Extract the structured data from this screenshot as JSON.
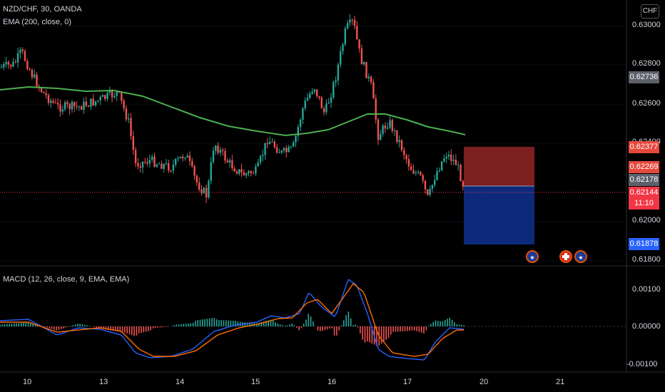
{
  "header": {
    "symbol_line": "NZD/CHF, 30, OANDA",
    "ema_line": "EMA (200, close, 0)",
    "macd_line": "MACD (12, 26, close, 9, EMA, EMA)",
    "currency_button": "CHF"
  },
  "price_axis": {
    "ticks": [
      "0.63000",
      "0.62800",
      "0.62600",
      "0.62400",
      "0.62000",
      "0.61800"
    ],
    "badges": [
      {
        "label": "0.62736",
        "color": "#5d606b"
      },
      {
        "label": "0.62377",
        "color": "#e5483c"
      },
      {
        "label": "0.62269",
        "color": "#e5483c"
      },
      {
        "label": "0.62178",
        "color": "#5d606b"
      },
      {
        "label": "0.62144",
        "color": "#f23645"
      },
      {
        "label": "11:10",
        "color": "#f23645"
      },
      {
        "label": "0.61878",
        "color": "#2962ff"
      }
    ]
  },
  "macd_axis": {
    "ticks": [
      "0.00100",
      "0.00000",
      "-0.00100"
    ]
  },
  "time_axis": {
    "ticks": [
      "10",
      "13",
      "14",
      "15",
      "16",
      "17",
      "20",
      "21"
    ]
  },
  "colors": {
    "up": "#26a69a",
    "down": "#ef5350",
    "ema": "#4caf50",
    "macd": "#2962ff",
    "signal": "#ff6d00",
    "stop_zone": "#7b1f1f",
    "target_zone": "#0d2a7a"
  },
  "events": [
    {
      "icon": "new-zealand-flag-icon"
    },
    {
      "icon": "switzerland-flag-icon"
    },
    {
      "icon": "new-zealand-flag-icon"
    }
  ]
}
